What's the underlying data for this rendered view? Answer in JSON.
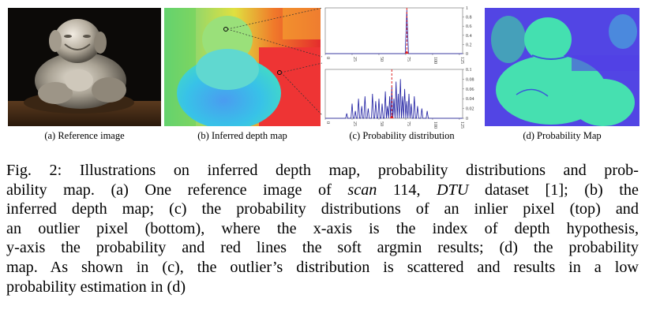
{
  "figure": {
    "panels": [
      {
        "id": "a",
        "caption": "(a) Reference image"
      },
      {
        "id": "b",
        "caption": "(b) Inferred depth map"
      },
      {
        "id": "c",
        "caption": "(c) Probability distribution"
      },
      {
        "id": "d",
        "caption": "(d) Probability Map"
      }
    ],
    "caption_lines": [
      "Fig. 2: Illustrations on inferred depth map, probability distributions and prob-",
      "ability map. (a) One reference image of scan 114, DTU dataset [1]; (b) the",
      "inferred depth map; (c) the probability distributions of an inlier pixel (top) and",
      "an outlier pixel (bottom), where the x-axis is the index of depth hypothesis,",
      "y-axis the probability and red lines the soft argmin results; (d) the probability",
      "map. As shown in (c), the outlier’s distribution is scattered and results in a low",
      "probability estimation in (d)"
    ],
    "caption_parts": {
      "l2a": "ability map. (a) One reference image of ",
      "l2scan": "scan",
      "l2b": " 114, ",
      "l2dtu": "DTU",
      "l2c": " dataset [1]; (b) the"
    }
  },
  "chart_data": [
    {
      "type": "line",
      "title": "",
      "x_ticks": [
        "0",
        "25",
        "50",
        "75",
        "100",
        "125"
      ],
      "y_ticks": [
        "0",
        "0.2",
        "0.4",
        "0.6",
        "0.8",
        "1"
      ],
      "xlim": [
        0,
        128
      ],
      "ylim": [
        0,
        1
      ],
      "peak_index": 76,
      "peak_value": 0.95,
      "soft_argmin": 76,
      "colors": {
        "line": "#1a1aa0",
        "argmin": "#e02020"
      }
    },
    {
      "type": "line",
      "title": "",
      "x_ticks": [
        "0",
        "25",
        "50",
        "75",
        "100",
        "125"
      ],
      "y_ticks": [
        "0",
        "0.02",
        "0.04",
        "0.06",
        "0.08",
        "0.1"
      ],
      "xlim": [
        0,
        128
      ],
      "ylim": [
        0,
        0.1
      ],
      "spikes": [
        [
          20,
          0.01
        ],
        [
          25,
          0.03
        ],
        [
          28,
          0.015
        ],
        [
          31,
          0.04
        ],
        [
          34,
          0.025
        ],
        [
          37,
          0.045
        ],
        [
          40,
          0.02
        ],
        [
          44,
          0.05
        ],
        [
          47,
          0.035
        ],
        [
          50,
          0.04
        ],
        [
          53,
          0.03
        ],
        [
          56,
          0.055
        ],
        [
          58,
          0.025
        ],
        [
          60,
          0.045
        ],
        [
          62,
          0.065
        ],
        [
          64,
          0.04
        ],
        [
          66,
          0.075
        ],
        [
          68,
          0.05
        ],
        [
          70,
          0.08
        ],
        [
          72,
          0.045
        ],
        [
          74,
          0.06
        ],
        [
          76,
          0.035
        ],
        [
          78,
          0.05
        ],
        [
          80,
          0.03
        ],
        [
          83,
          0.045
        ],
        [
          86,
          0.025
        ],
        [
          90,
          0.02
        ],
        [
          95,
          0.015
        ]
      ],
      "soft_argmin": 62,
      "colors": {
        "line": "#1a1aa0",
        "argmin": "#e02020"
      }
    }
  ]
}
